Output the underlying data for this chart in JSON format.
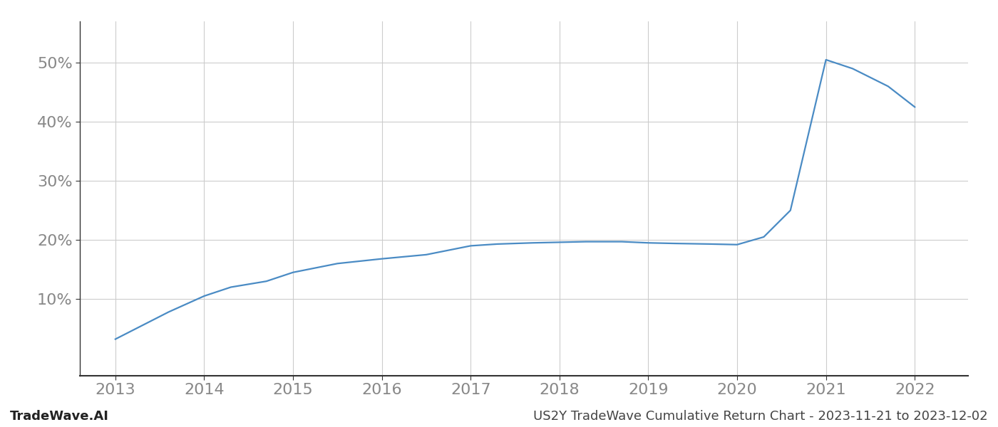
{
  "x_values": [
    2013,
    2013.3,
    2013.6,
    2014.0,
    2014.3,
    2014.7,
    2015.0,
    2015.5,
    2016.0,
    2016.5,
    2017.0,
    2017.3,
    2017.7,
    2018.0,
    2018.3,
    2018.7,
    2019.0,
    2019.3,
    2019.7,
    2020.0,
    2020.3,
    2020.6,
    2021.0,
    2021.3,
    2021.7,
    2022.0
  ],
  "y_values": [
    3.2,
    5.5,
    7.8,
    10.5,
    12.0,
    13.0,
    14.5,
    16.0,
    16.8,
    17.5,
    19.0,
    19.3,
    19.5,
    19.6,
    19.7,
    19.7,
    19.5,
    19.4,
    19.3,
    19.2,
    20.5,
    25.0,
    50.5,
    49.0,
    46.0,
    42.5
  ],
  "line_color": "#4a8bc4",
  "line_width": 1.6,
  "background_color": "#ffffff",
  "grid_color": "#cccccc",
  "footer_left": "TradeWave.AI",
  "footer_right": "US2Y TradeWave Cumulative Return Chart - 2023-11-21 to 2023-12-02",
  "x_ticks": [
    2013,
    2014,
    2015,
    2016,
    2017,
    2018,
    2019,
    2020,
    2021,
    2022
  ],
  "y_ticks": [
    10,
    20,
    30,
    40,
    50
  ],
  "ylim": [
    -3,
    57
  ],
  "xlim": [
    2012.6,
    2022.6
  ],
  "tick_fontsize": 16,
  "footer_fontsize": 13,
  "tick_color": "#888888",
  "spine_color": "#333333"
}
